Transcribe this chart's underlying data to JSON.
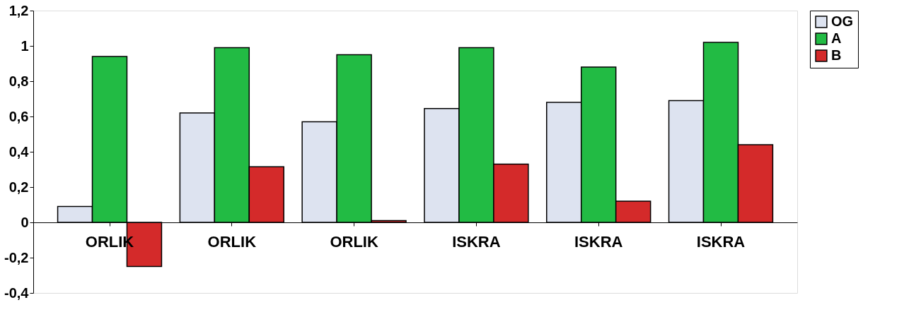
{
  "chart_data": {
    "type": "bar",
    "categories": [
      "ORLIK",
      "ORLIK",
      "ORLIK",
      "ISKRA",
      "ISKRA",
      "ISKRA"
    ],
    "series": [
      {
        "name": "OG",
        "color": "#dde3f0",
        "values": [
          0.09,
          0.62,
          0.57,
          0.645,
          0.68,
          0.69
        ]
      },
      {
        "name": "A",
        "color": "#22bb44",
        "values": [
          0.94,
          0.99,
          0.95,
          0.99,
          0.88,
          1.02
        ]
      },
      {
        "name": "B",
        "color": "#d42a2a",
        "values": [
          -0.25,
          0.315,
          0.01,
          0.33,
          0.12,
          0.44
        ]
      }
    ],
    "ylim": [
      -0.4,
      1.2
    ],
    "yticks": [
      {
        "value": -0.4,
        "label": "-0,4"
      },
      {
        "value": -0.2,
        "label": "-0,2"
      },
      0,
      {
        "value": 0.2,
        "label": "0,2"
      },
      {
        "value": 0.4,
        "label": "0,4"
      },
      {
        "value": 0.6,
        "label": "0,6"
      },
      {
        "value": 0.8,
        "label": "0,8"
      },
      1,
      {
        "value": 1.2,
        "label": "1,2"
      }
    ],
    "grid": false,
    "legend": "right"
  }
}
